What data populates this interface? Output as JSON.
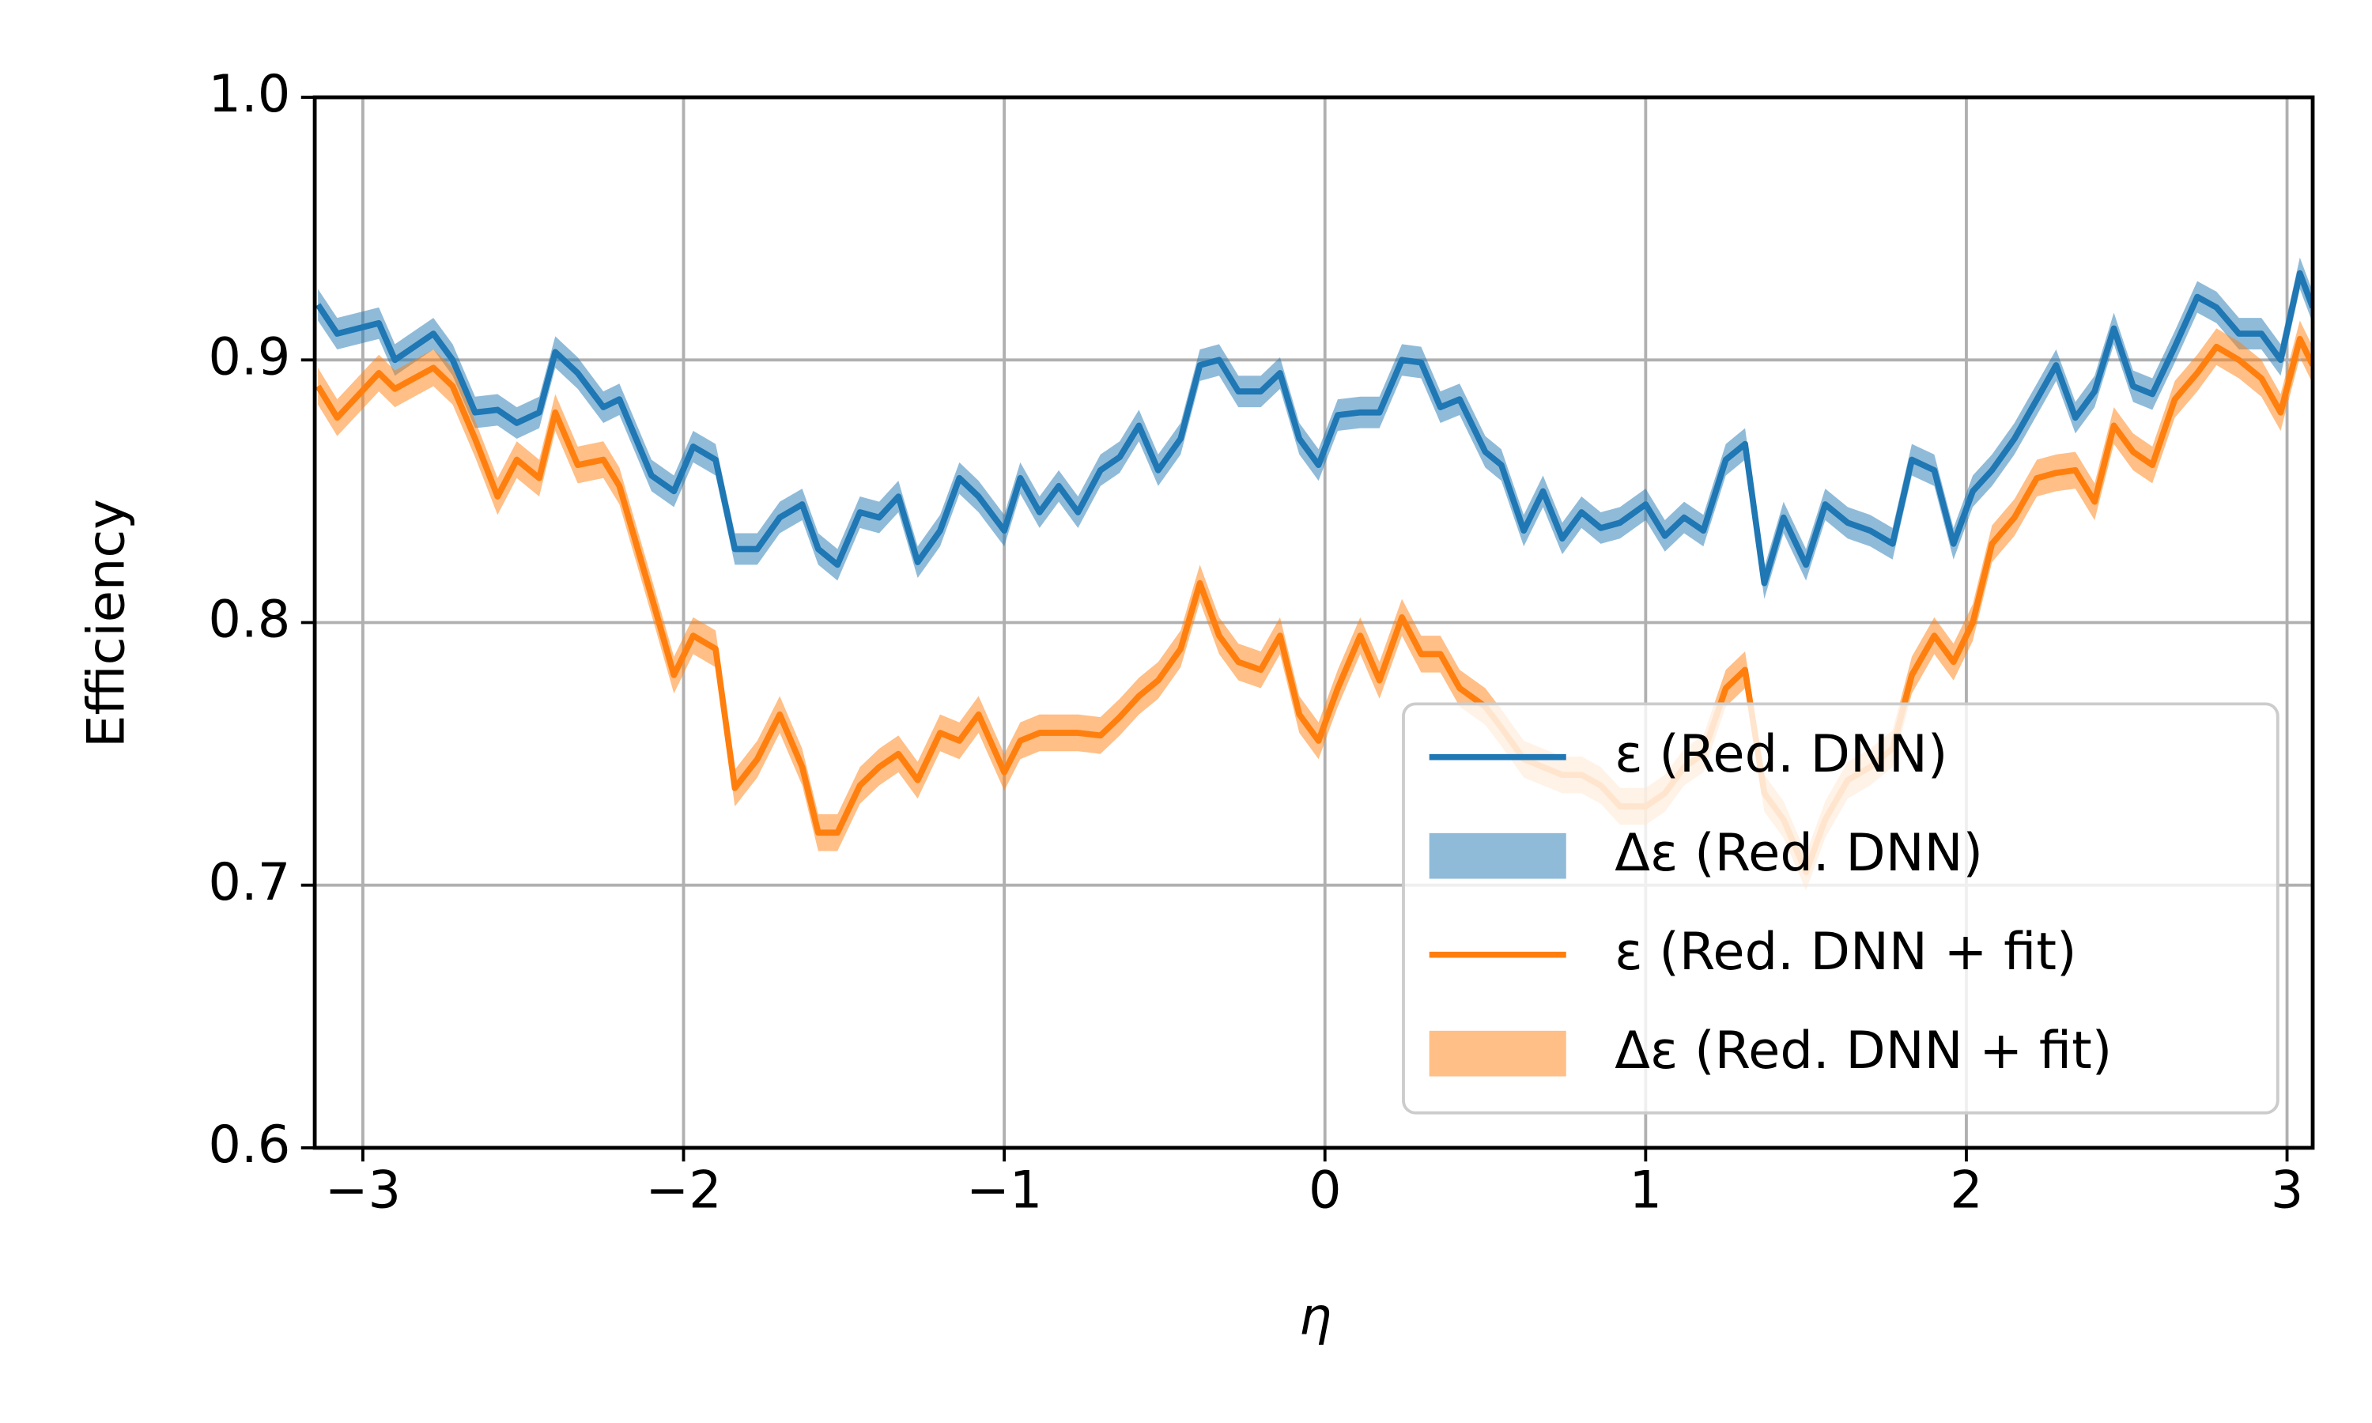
{
  "chart_data": {
    "type": "line",
    "xlabel": "η",
    "ylabel": "Efficiency",
    "x": [
      -3.14,
      -3.08,
      -2.95,
      -2.9,
      -2.78,
      -2.72,
      -2.65,
      -2.58,
      -2.52,
      -2.45,
      -2.4,
      -2.33,
      -2.25,
      -2.2,
      -2.1,
      -2.03,
      -1.97,
      -1.9,
      -1.84,
      -1.77,
      -1.7,
      -1.63,
      -1.58,
      -1.52,
      -1.45,
      -1.39,
      -1.33,
      -1.27,
      -1.2,
      -1.14,
      -1.08,
      -1.0,
      -0.95,
      -0.89,
      -0.83,
      -0.77,
      -0.7,
      -0.64,
      -0.58,
      -0.52,
      -0.45,
      -0.39,
      -0.33,
      -0.27,
      -0.2,
      -0.14,
      -0.08,
      -0.02,
      0.04,
      0.11,
      0.17,
      0.24,
      0.3,
      0.36,
      0.42,
      0.5,
      0.55,
      0.62,
      0.68,
      0.74,
      0.8,
      0.86,
      0.92,
      1.0,
      1.06,
      1.12,
      1.18,
      1.25,
      1.31,
      1.37,
      1.43,
      1.5,
      1.56,
      1.63,
      1.7,
      1.77,
      1.83,
      1.9,
      1.96,
      2.02,
      2.08,
      2.15,
      2.22,
      2.28,
      2.34,
      2.4,
      2.46,
      2.52,
      2.58,
      2.65,
      2.72,
      2.78,
      2.85,
      2.92,
      2.98,
      3.04,
      3.08
    ],
    "series": [
      {
        "name": "ε (Red. DNN)",
        "band_name": "Δε (Red. DNN)",
        "color": "#1f77b4",
        "error": 0.006,
        "values": [
          0.921,
          0.91,
          0.914,
          0.9,
          0.91,
          0.9,
          0.88,
          0.881,
          0.876,
          0.88,
          0.903,
          0.895,
          0.882,
          0.885,
          0.856,
          0.85,
          0.867,
          0.862,
          0.828,
          0.828,
          0.84,
          0.845,
          0.828,
          0.822,
          0.842,
          0.84,
          0.848,
          0.823,
          0.835,
          0.855,
          0.848,
          0.835,
          0.855,
          0.842,
          0.852,
          0.842,
          0.858,
          0.863,
          0.875,
          0.858,
          0.87,
          0.898,
          0.9,
          0.888,
          0.888,
          0.895,
          0.87,
          0.86,
          0.879,
          0.88,
          0.88,
          0.9,
          0.899,
          0.882,
          0.885,
          0.865,
          0.86,
          0.835,
          0.85,
          0.832,
          0.842,
          0.836,
          0.838,
          0.845,
          0.833,
          0.84,
          0.835,
          0.862,
          0.868,
          0.815,
          0.84,
          0.822,
          0.845,
          0.838,
          0.835,
          0.83,
          0.862,
          0.858,
          0.83,
          0.85,
          0.858,
          0.87,
          0.885,
          0.898,
          0.878,
          0.888,
          0.912,
          0.89,
          0.887,
          0.905,
          0.924,
          0.92,
          0.91,
          0.91,
          0.9,
          0.933,
          0.92
        ]
      },
      {
        "name": "ε (Red. DNN + fit)",
        "band_name": "Δε (Red. DNN + fit)",
        "color": "#ff7f0e",
        "error": 0.007,
        "values": [
          0.89,
          0.878,
          0.895,
          0.889,
          0.897,
          0.89,
          0.87,
          0.848,
          0.862,
          0.855,
          0.88,
          0.86,
          0.862,
          0.852,
          0.81,
          0.78,
          0.795,
          0.79,
          0.737,
          0.748,
          0.765,
          0.745,
          0.72,
          0.72,
          0.738,
          0.745,
          0.75,
          0.74,
          0.758,
          0.755,
          0.765,
          0.743,
          0.755,
          0.758,
          0.758,
          0.758,
          0.757,
          0.764,
          0.772,
          0.778,
          0.79,
          0.815,
          0.795,
          0.785,
          0.782,
          0.795,
          0.765,
          0.755,
          0.775,
          0.795,
          0.778,
          0.802,
          0.788,
          0.788,
          0.775,
          0.768,
          0.76,
          0.748,
          0.745,
          0.742,
          0.742,
          0.738,
          0.73,
          0.73,
          0.735,
          0.745,
          0.75,
          0.775,
          0.782,
          0.735,
          0.725,
          0.705,
          0.725,
          0.74,
          0.745,
          0.752,
          0.78,
          0.795,
          0.785,
          0.8,
          0.83,
          0.84,
          0.855,
          0.857,
          0.858,
          0.846,
          0.875,
          0.865,
          0.86,
          0.885,
          0.895,
          0.905,
          0.9,
          0.893,
          0.88,
          0.908,
          0.898
        ]
      }
    ],
    "xlim": [
      -3.15,
      3.08
    ],
    "ylim": [
      0.6,
      1.0
    ],
    "xticks": [
      {
        "value": -3,
        "label": "−3"
      },
      {
        "value": -2,
        "label": "−2"
      },
      {
        "value": -1,
        "label": "−1"
      },
      0,
      1,
      2,
      3
    ],
    "yticks": [
      0.6,
      0.7,
      0.8,
      0.9,
      {
        "value": 1.0,
        "label": "1.0"
      }
    ],
    "grid": true,
    "legend": "lower right"
  }
}
